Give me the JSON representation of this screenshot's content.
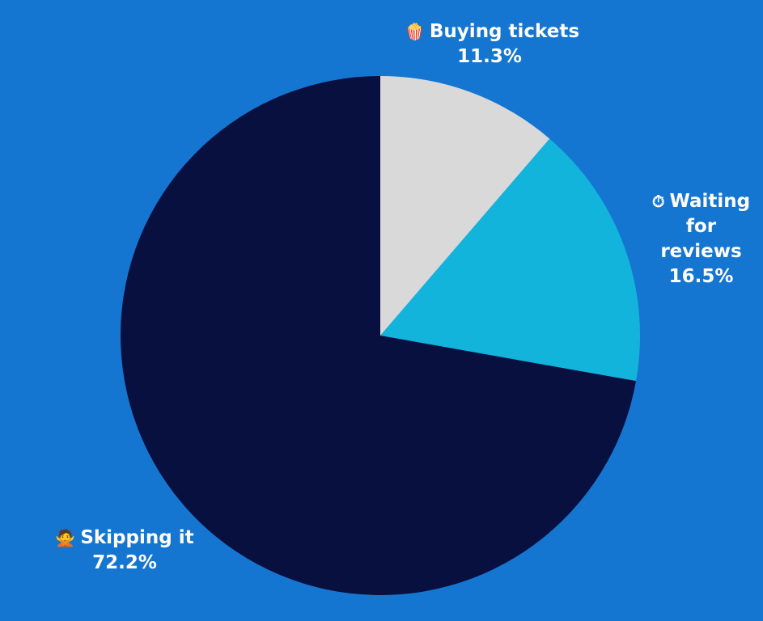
{
  "chart_data": {
    "type": "pie",
    "slices": [
      {
        "label": "Buying tickets",
        "value": 11.3,
        "value_label": "11.3%",
        "color": "#d9d9d9",
        "icon": "popcorn-icon",
        "icon_glyph": "🍿"
      },
      {
        "label": "Waiting for reviews",
        "value": 16.5,
        "value_label": "16.5%",
        "color": "#12b4dc",
        "icon": "stopwatch-icon",
        "icon_glyph": "⏱"
      },
      {
        "label": "Skipping it",
        "value": 72.2,
        "value_label": "72.2%",
        "color": "#08103f",
        "icon": "person-crossed-arms-icon",
        "icon_glyph": "🙅"
      }
    ],
    "start_angle": "top",
    "direction": "clockwise",
    "background_color": "#1576d1"
  }
}
